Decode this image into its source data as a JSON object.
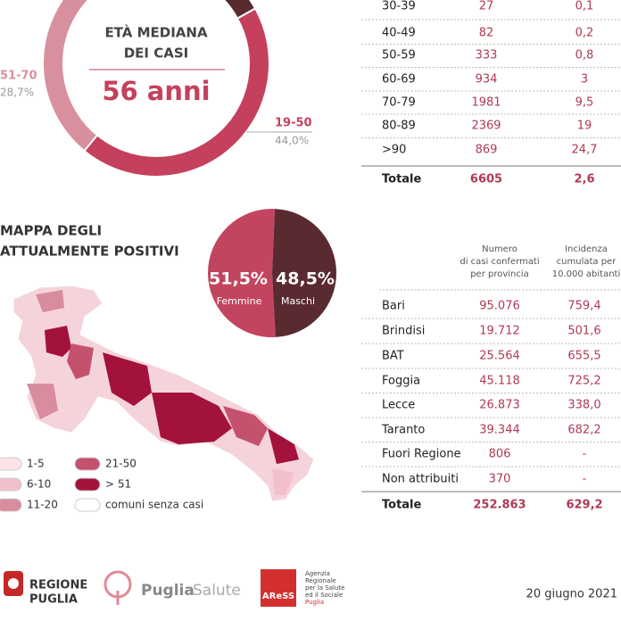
{
  "age_donut": {
    "title_lines": [
      "ETÀ MEDIANA",
      "DEI CASI"
    ],
    "median": "56 anni",
    "segments": [
      {
        "name": "19-50",
        "value": 44.0,
        "label": "44,0%",
        "color": "#c4405c"
      },
      {
        "name": "51-70",
        "value": 28.7,
        "label": "28,7%",
        "color": "#d9909e"
      }
    ]
  },
  "age_table": {
    "rows": [
      [
        "30-39",
        "27",
        "0,1"
      ],
      [
        "40-49",
        "82",
        "0,2"
      ],
      [
        "50-59",
        "333",
        "0,8"
      ],
      [
        "60-69",
        "934",
        "3"
      ],
      [
        "70-79",
        "1981",
        "9,5"
      ],
      [
        "80-89",
        "2369",
        "19"
      ],
      [
        ">90",
        "869",
        "24,7"
      ]
    ],
    "total": [
      "Totale",
      "6605",
      "2,6"
    ]
  },
  "map": {
    "title_lines": [
      "MAPPA DEGLI",
      "ATTUALMENTE POSITIVI"
    ],
    "legend": [
      {
        "label": "1-5",
        "color": "#fbe4e8"
      },
      {
        "label": "6-10",
        "color": "#f2c0ca"
      },
      {
        "label": "11-20",
        "color": "#d98c9e"
      },
      {
        "label": "21-50",
        "color": "#c4526d"
      },
      {
        "label": "> 51",
        "color": "#a3123a"
      },
      {
        "label": "comuni senza casi",
        "color": "#ffffff"
      }
    ]
  },
  "gender_pie": {
    "slices": [
      {
        "name": "Femmine",
        "value": 51.5,
        "label": "51,5%",
        "color": "#c24560"
      },
      {
        "name": "Maschi",
        "value": 48.5,
        "label": "48,5%",
        "color": "#5a2a31"
      }
    ]
  },
  "province_table": {
    "headers": [
      [
        "Numero",
        "di casi confermati",
        "per provincia"
      ],
      [
        "Incidenza",
        "cumulata per",
        "10.000 abitanti"
      ]
    ],
    "rows": [
      [
        "Bari",
        "95.076",
        "759,4"
      ],
      [
        "Brindisi",
        "19.712",
        "501,6"
      ],
      [
        "BAT",
        "25.564",
        "655,5"
      ],
      [
        "Foggia",
        "45.118",
        "725,2"
      ],
      [
        "Lecce",
        "26.873",
        "338,0"
      ],
      [
        "Taranto",
        "39.344",
        "682,2"
      ],
      [
        "Fuori Regione",
        "806",
        "-"
      ],
      [
        "Non attribuiti",
        "370",
        "-"
      ]
    ],
    "total": [
      "Totale",
      "252.863",
      "629,2"
    ]
  },
  "footer": {
    "region": [
      "REGIONE",
      "PUGLIA"
    ],
    "portal": [
      "Puglia",
      "Salute"
    ],
    "agency_logo": "AReSS",
    "agency_lines": [
      "Agenzia",
      "Regionale",
      "per la Salute",
      "ed il Sociale",
      "Puglia"
    ],
    "date": "20 giugno 2021"
  }
}
